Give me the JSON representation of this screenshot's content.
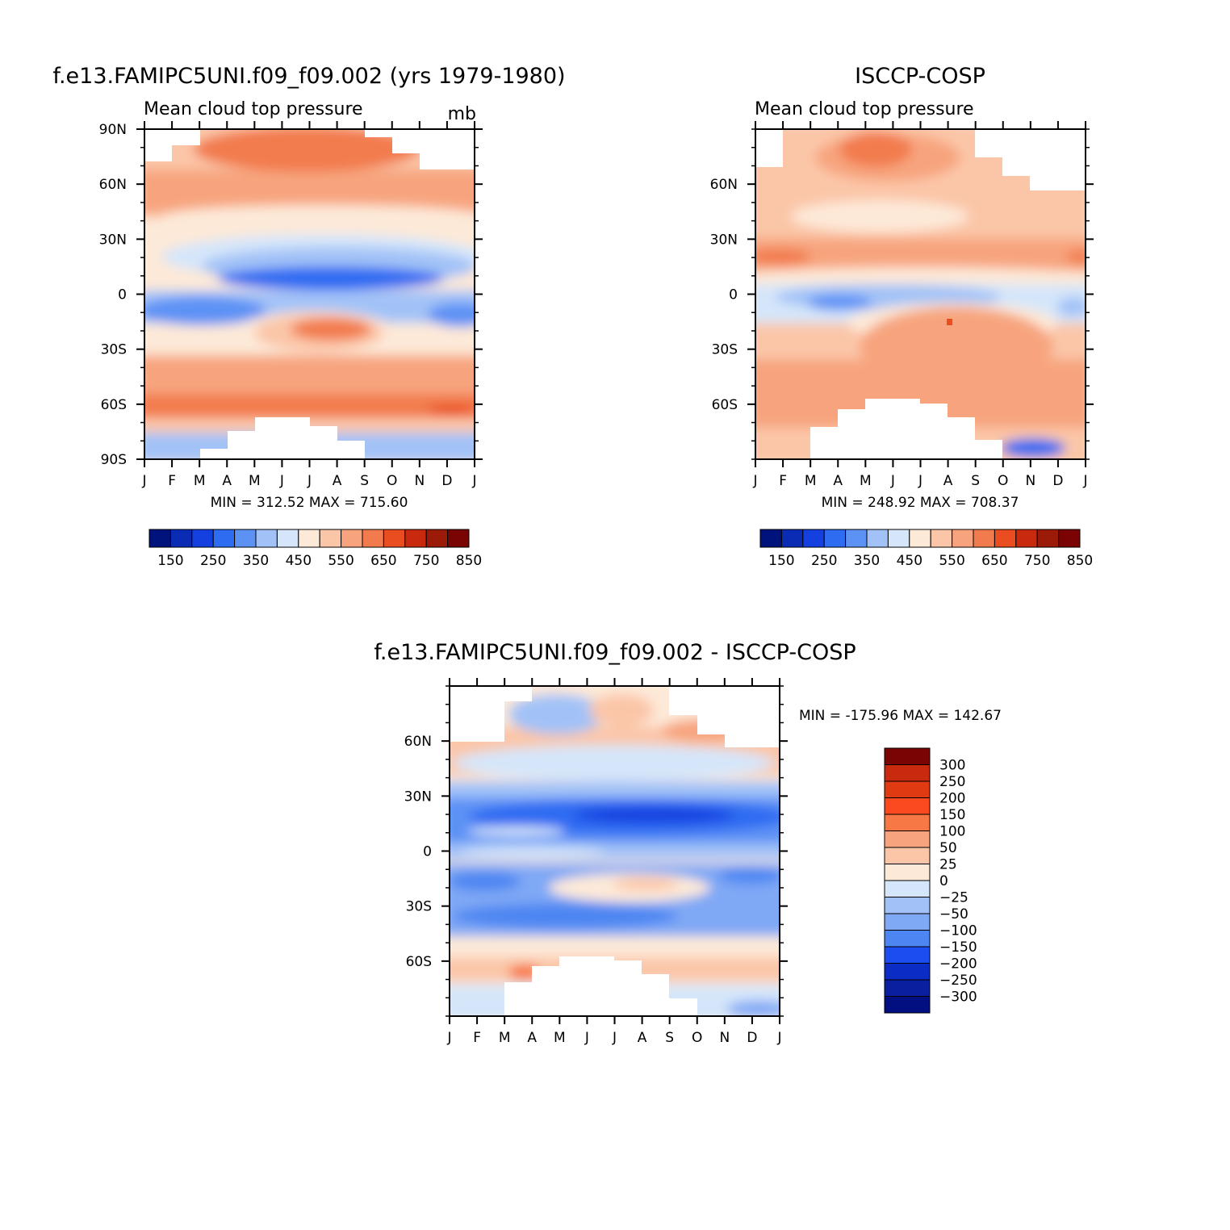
{
  "chart_data": [
    {
      "type": "heatmap",
      "title": "f.e13.FAMIPC5UNI.f09_f09.002 (yrs 1979-1980)",
      "subtitle": "Mean cloud top pressure",
      "units": "mb",
      "x_ticks": [
        "J",
        "F",
        "M",
        "A",
        "M",
        "J",
        "J",
        "A",
        "S",
        "O",
        "N",
        "D",
        "J"
      ],
      "y_ticks": [
        "90N",
        "60N",
        "30N",
        "0",
        "30S",
        "60S",
        "90S"
      ],
      "y_range": [
        -90,
        90
      ],
      "stats": "MIN = 312.52 MAX = 715.60",
      "colorbar_orientation": "horizontal",
      "colorbar_labels": [
        "150",
        "250",
        "350",
        "450",
        "550",
        "650",
        "750",
        "850"
      ],
      "colorbar_colors": [
        "#00137d",
        "#0a2bb3",
        "#1540e0",
        "#2e6cf2",
        "#5d92f5",
        "#a2c2f7",
        "#d5e6fa",
        "#fde9d8",
        "#fbc6a8",
        "#f7a47e",
        "#f27b4e",
        "#ea4d1f",
        "#c92a0e",
        "#9c1a08",
        "#7a0303"
      ]
    },
    {
      "type": "heatmap",
      "title": "ISCCP-COSP",
      "subtitle": "Mean cloud top pressure",
      "x_ticks": [
        "J",
        "F",
        "M",
        "A",
        "M",
        "J",
        "J",
        "A",
        "S",
        "O",
        "N",
        "D",
        "J"
      ],
      "y_ticks": [
        "60N",
        "30N",
        "0",
        "30S",
        "60S"
      ],
      "y_range": [
        -90,
        90
      ],
      "stats": "MIN = 248.92 MAX = 708.37",
      "colorbar_orientation": "horizontal",
      "colorbar_labels": [
        "150",
        "250",
        "350",
        "450",
        "550",
        "650",
        "750",
        "850"
      ],
      "colorbar_colors": [
        "#00137d",
        "#0a2bb3",
        "#1540e0",
        "#2e6cf2",
        "#5d92f5",
        "#a2c2f7",
        "#d5e6fa",
        "#fde9d8",
        "#fbc6a8",
        "#f7a47e",
        "#f27b4e",
        "#ea4d1f",
        "#c92a0e",
        "#9c1a08",
        "#7a0303"
      ]
    },
    {
      "type": "heatmap",
      "title": "f.e13.FAMIPC5UNI.f09_f09.002 - ISCCP-COSP",
      "x_ticks": [
        "J",
        "F",
        "M",
        "A",
        "M",
        "J",
        "J",
        "A",
        "S",
        "O",
        "N",
        "D",
        "J"
      ],
      "y_ticks": [
        "60N",
        "30N",
        "0",
        "30S",
        "60S"
      ],
      "y_range": [
        -90,
        90
      ],
      "stats": "MIN = -175.96 MAX = 142.67",
      "colorbar_orientation": "vertical",
      "colorbar_labels": [
        "300",
        "250",
        "200",
        "150",
        "100",
        "50",
        "25",
        "0",
        "-25",
        "-50",
        "-100",
        "-150",
        "-200",
        "-250",
        "-300"
      ],
      "colorbar_colors": [
        "#7a0303",
        "#c92a0e",
        "#e03a12",
        "#fb4a1f",
        "#f77745",
        "#f7a47e",
        "#fbc6a8",
        "#fde9d8",
        "#d5e6fa",
        "#a2c2f7",
        "#7fa8f5",
        "#4d86f2",
        "#1c4df0",
        "#0c2cc6",
        "#0a1f9e",
        "#020f80"
      ]
    }
  ]
}
